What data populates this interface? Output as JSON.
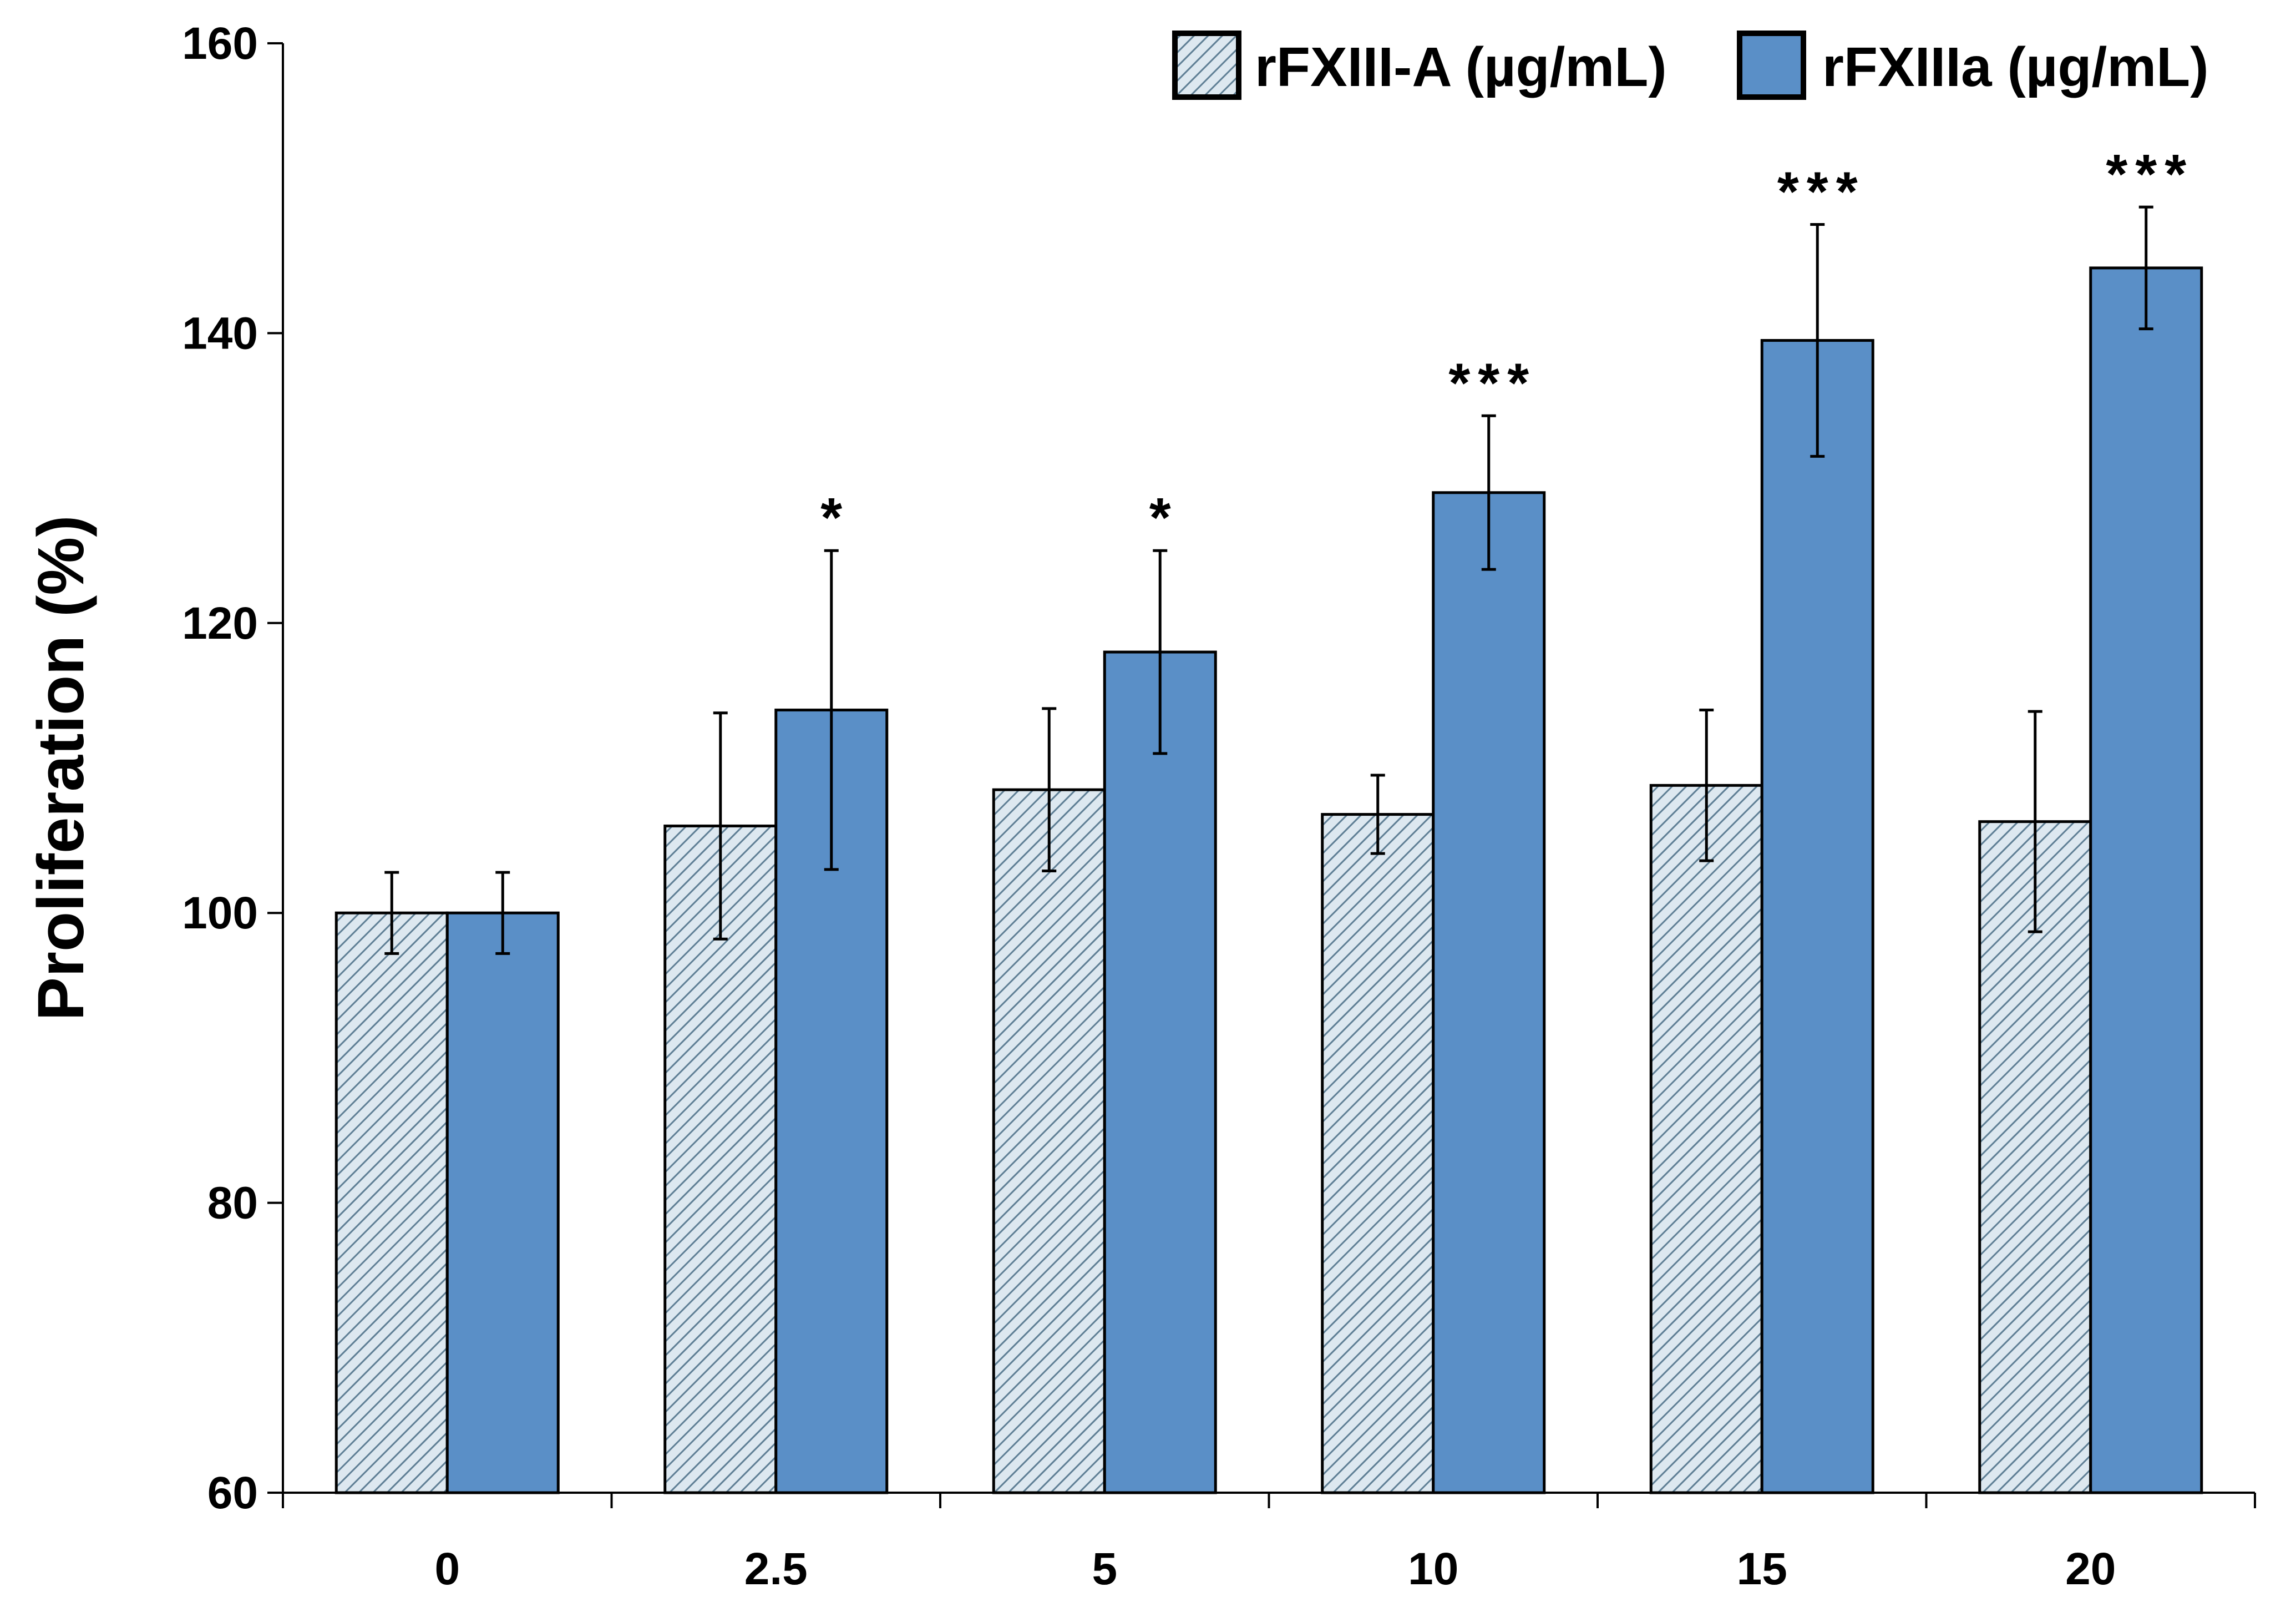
{
  "chart_data": {
    "type": "bar",
    "title": "",
    "xlabel": "",
    "ylabel": "Proliferation (%)",
    "ylim": [
      60,
      160
    ],
    "yticks": [
      60,
      80,
      100,
      120,
      140,
      160
    ],
    "categories": [
      "0",
      "2.5",
      "5",
      "10",
      "15",
      "20"
    ],
    "legend_position": "top-right",
    "series": [
      {
        "name": "rFXIII-A (µg/mL)",
        "pattern": "hatched",
        "color": "#dde8f0",
        "hatch_color": "#5f7f95",
        "values": [
          100.0,
          106.0,
          108.5,
          106.8,
          108.8,
          106.3
        ],
        "errors": [
          2.8,
          7.8,
          5.6,
          2.7,
          5.2,
          7.6
        ],
        "significance": [
          "",
          "",
          "",
          "",
          "",
          ""
        ]
      },
      {
        "name": "rFXIIIa (µg/mL)",
        "pattern": "solid",
        "color": "#5a8fc7",
        "values": [
          100.0,
          114.0,
          118.0,
          129.0,
          139.5,
          144.5
        ],
        "errors": [
          2.8,
          11.0,
          7.0,
          5.3,
          8.0,
          4.2
        ],
        "significance": [
          "",
          "*",
          "*",
          "***",
          "***",
          "***"
        ]
      }
    ]
  }
}
